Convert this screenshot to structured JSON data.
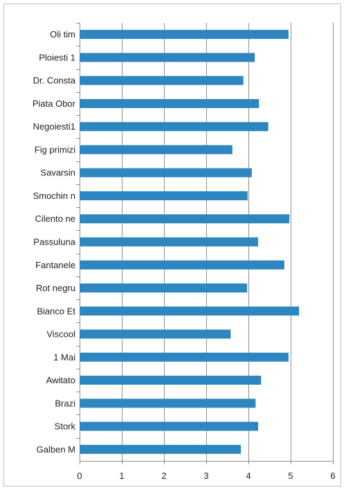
{
  "chart_data": {
    "type": "bar",
    "orientation": "horizontal",
    "categories": [
      "Oli tim",
      "Ploiesti 1",
      "Dr. Consta",
      "Piata Obor",
      "Negoiesti1",
      "Fig primizi",
      "Savarsin",
      "Smochin n",
      "Cilento ne",
      "Passuluna",
      "Fantanele",
      "Rot negru",
      "Bianco Et",
      "Viscool",
      "1 Mai",
      "Awitato",
      "Brazi",
      "Stork",
      "Galben M"
    ],
    "values": [
      4.95,
      4.15,
      3.88,
      4.25,
      4.47,
      3.62,
      4.08,
      3.98,
      4.97,
      4.23,
      4.85,
      3.97,
      5.2,
      3.58,
      4.95,
      4.3,
      4.17,
      4.23,
      3.82
    ],
    "title": "",
    "xlabel": "",
    "ylabel": "",
    "xlim": [
      0,
      6
    ],
    "xticks": [
      "0",
      "1",
      "2",
      "3",
      "4",
      "5",
      "6"
    ],
    "grid": "vertical-major",
    "legend": "none",
    "colors": {
      "bar": "#2e86c1",
      "grid": "#8c8c8c",
      "frame": "#bfbfbf"
    }
  }
}
